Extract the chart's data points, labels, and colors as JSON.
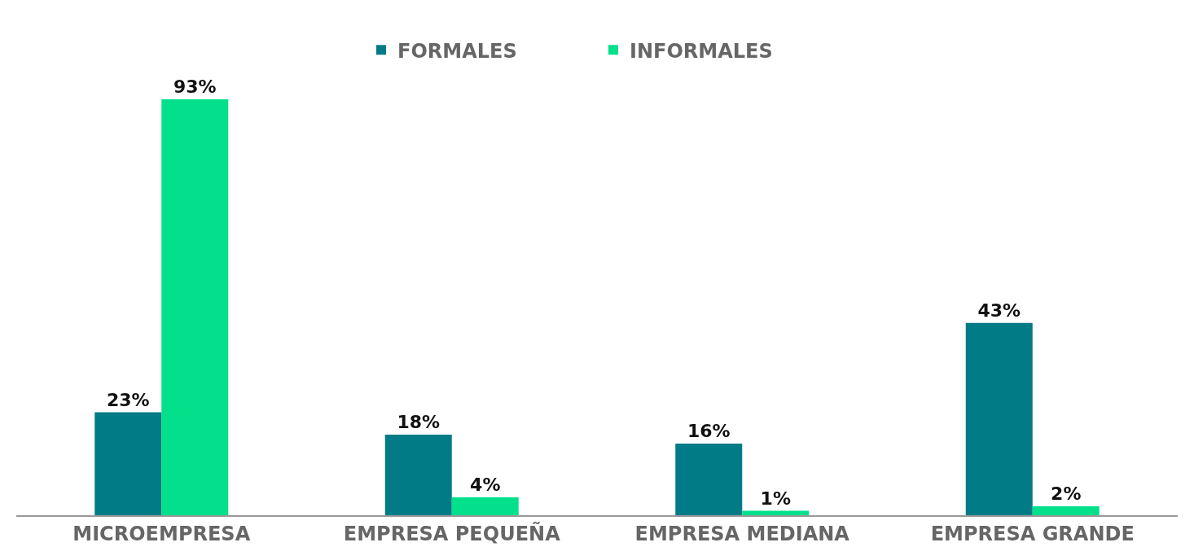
{
  "chart_data": {
    "type": "bar",
    "categories": [
      "MICROEMPRESA",
      "EMPRESA PEQUEÑA",
      "EMPRESA MEDIANA",
      "EMPRESA GRANDE"
    ],
    "series": [
      {
        "name": "FORMALES",
        "color": "#017b86",
        "values": [
          23,
          18,
          16,
          43
        ],
        "value_labels": [
          "23%",
          "18%",
          "16%",
          "43%"
        ]
      },
      {
        "name": "INFORMALES",
        "color": "#02e08c",
        "values": [
          93,
          4,
          1,
          2
        ],
        "value_labels": [
          "93%",
          "4%",
          "1%",
          "2%"
        ]
      }
    ],
    "legend": "top"
  }
}
